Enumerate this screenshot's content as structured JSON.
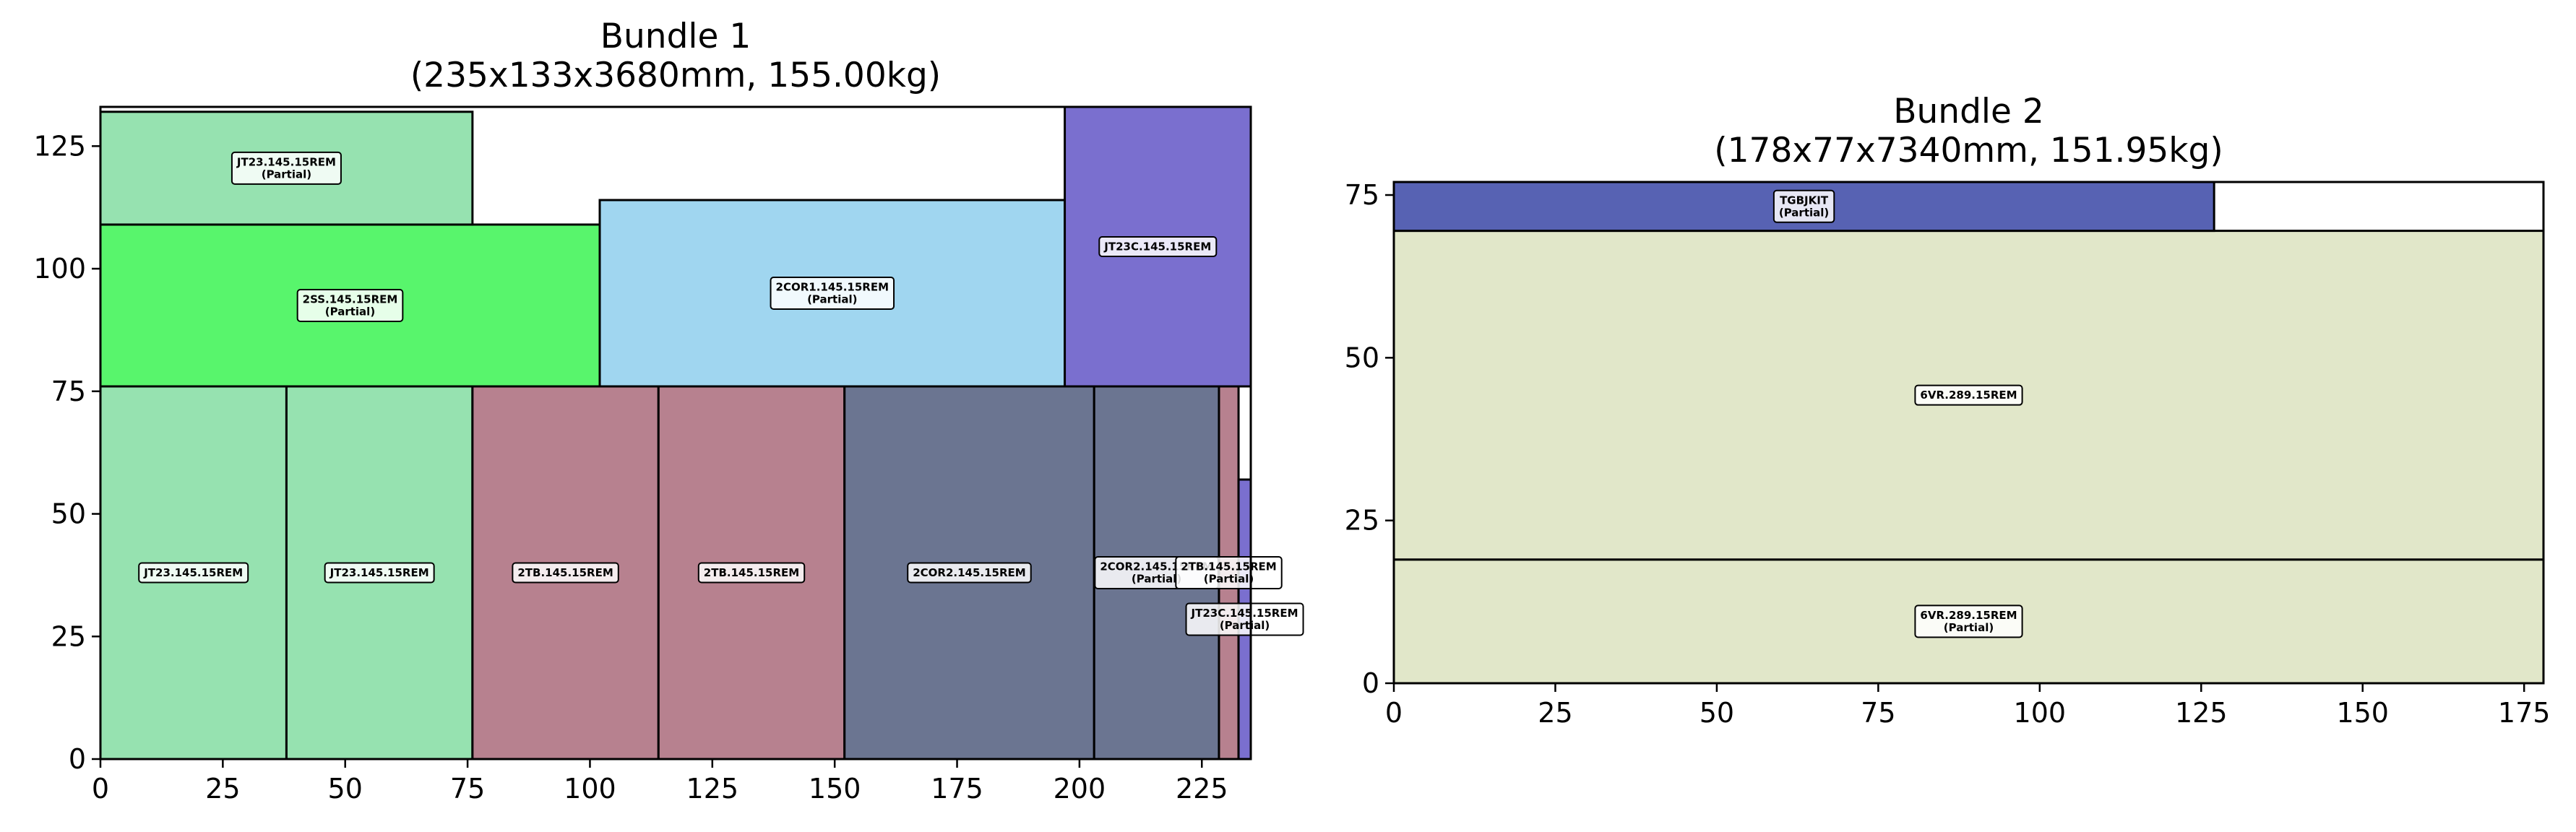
{
  "chart_data": [
    {
      "type": "rectangle-packing",
      "title_line1": "Bundle 1",
      "title_line2": "(235x133x3680mm, 155.00kg)",
      "xlim": [
        0,
        235
      ],
      "ylim": [
        0,
        133
      ],
      "xticks": [
        0,
        25,
        50,
        75,
        100,
        125,
        150,
        175,
        200,
        225
      ],
      "yticks": [
        0,
        25,
        50,
        75,
        100,
        125
      ],
      "grid": false,
      "items": [
        {
          "x": 0,
          "y": 0,
          "w": 38,
          "h": 76,
          "color": "#96e2b0",
          "label": [
            "JT23.145.15REM"
          ]
        },
        {
          "x": 38,
          "y": 0,
          "w": 38,
          "h": 76,
          "color": "#96e2b0",
          "label": [
            "JT23.145.15REM"
          ]
        },
        {
          "x": 76,
          "y": 0,
          "w": 38,
          "h": 76,
          "color": "#b7818f",
          "label": [
            "2TB.145.15REM"
          ]
        },
        {
          "x": 114,
          "y": 0,
          "w": 38,
          "h": 76,
          "color": "#b7818f",
          "label": [
            "2TB.145.15REM"
          ]
        },
        {
          "x": 152,
          "y": 0,
          "w": 51,
          "h": 76,
          "color": "#6b7591",
          "label": [
            "2COR2.145.15REM"
          ]
        },
        {
          "x": 203,
          "y": 0,
          "w": 25.5,
          "h": 76,
          "color": "#6b7591",
          "label": [
            "2COR2.145.15REM",
            "(Partial)"
          ]
        },
        {
          "x": 228.5,
          "y": 0,
          "w": 4,
          "h": 76,
          "color": "#b7818f",
          "label": [
            "2TB.145.15REM",
            "(Partial)"
          ]
        },
        {
          "x": 232.5,
          "y": 0,
          "w": 2.5,
          "h": 57,
          "color": "#7a6fcf",
          "label": [
            "JT23C.145.15REM",
            "(Partial)"
          ]
        },
        {
          "x": 0,
          "y": 76,
          "w": 102,
          "h": 33,
          "color": "#58f56c",
          "label": [
            "2SS.145.15REM",
            "(Partial)"
          ]
        },
        {
          "x": 0,
          "y": 109,
          "w": 76,
          "h": 23,
          "color": "#96e2b0",
          "label": [
            "JT23.145.15REM",
            "(Partial)"
          ]
        },
        {
          "x": 102,
          "y": 76,
          "w": 95,
          "h": 38,
          "color": "#a0d6f0",
          "label": [
            "2COR1.145.15REM",
            "(Partial)"
          ]
        },
        {
          "x": 197,
          "y": 76,
          "w": 38,
          "h": 57,
          "color": "#7a6fcf",
          "label": [
            "JT23C.145.15REM"
          ]
        }
      ]
    },
    {
      "type": "rectangle-packing",
      "title_line1": "Bundle 2",
      "title_line2": "(178x77x7340mm, 151.95kg)",
      "xlim": [
        0,
        178
      ],
      "ylim": [
        0,
        77
      ],
      "xticks": [
        0,
        25,
        50,
        75,
        100,
        125,
        150,
        175
      ],
      "yticks": [
        0,
        25,
        50,
        75
      ],
      "grid": false,
      "items": [
        {
          "x": 0,
          "y": 0,
          "w": 178,
          "h": 19,
          "color": "#e1e7c9",
          "label": [
            "6VR.289.15REM",
            "(Partial)"
          ]
        },
        {
          "x": 0,
          "y": 19,
          "w": 178,
          "h": 50.5,
          "color": "#e1e7c9",
          "label": [
            "6VR.289.15REM"
          ]
        },
        {
          "x": 0,
          "y": 69.5,
          "w": 127,
          "h": 7.5,
          "color": "#5762b3",
          "label": [
            "TGBJKIT",
            "(Partial)"
          ]
        }
      ]
    }
  ]
}
